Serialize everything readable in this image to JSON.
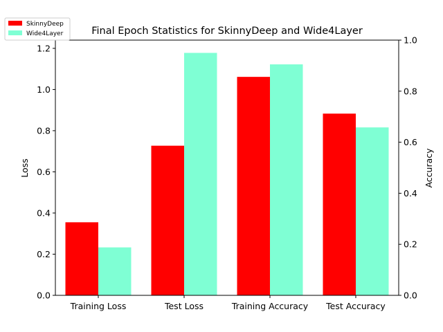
{
  "chart_data": {
    "type": "bar",
    "title": "Final Epoch Statistics for SkinnyDeep and Wide4Layer",
    "categories": [
      "Training Loss",
      "Test Loss",
      "Training Accuracy",
      "Test Accuracy"
    ],
    "series": [
      {
        "name": "SkinnyDeep",
        "color": "#ff0000",
        "values": [
          0.355,
          0.727,
          0.856,
          0.712
        ]
      },
      {
        "name": "Wide4Layer",
        "color": "#7fffd4",
        "values": [
          0.233,
          1.178,
          0.905,
          0.658
        ]
      }
    ],
    "axes": {
      "left": {
        "label": "Loss",
        "ylim": [
          0,
          1.24
        ],
        "ticks": [
          "0.0",
          "0.2",
          "0.4",
          "0.6",
          "0.8",
          "1.0",
          "1.2"
        ],
        "applies_to": [
          "Training Loss",
          "Test Loss"
        ]
      },
      "right": {
        "label": "Accuracy",
        "ylim": [
          0,
          1.0
        ],
        "ticks": [
          "0.0",
          "0.2",
          "0.4",
          "0.6",
          "0.8",
          "1.0"
        ],
        "applies_to": [
          "Training Accuracy",
          "Test Accuracy"
        ]
      }
    },
    "grid": false,
    "legend_position": "top-left"
  }
}
